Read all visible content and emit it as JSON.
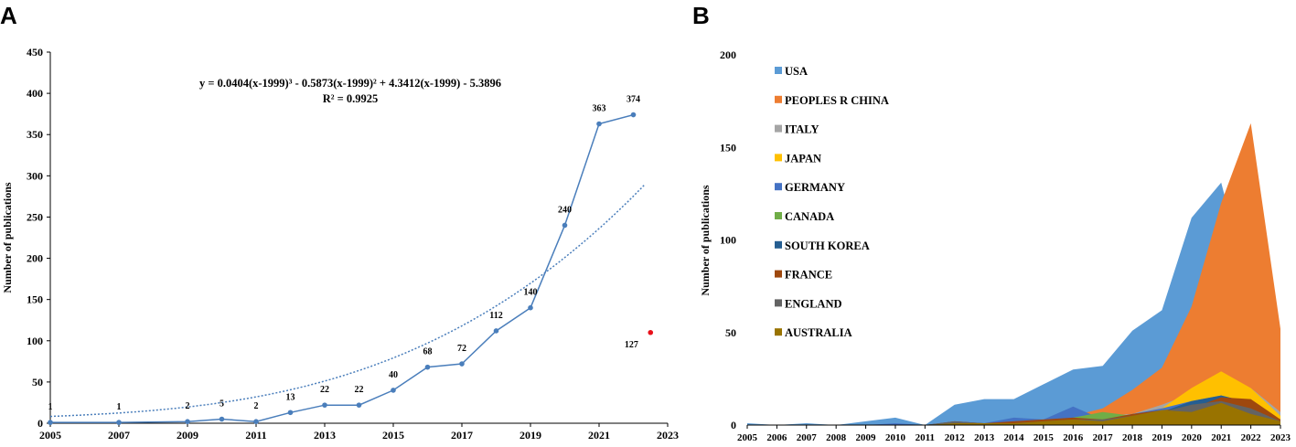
{
  "panels": {
    "a": "A",
    "b": "B"
  },
  "chart_data": [
    {
      "type": "line",
      "panel": "A",
      "ylabel": "Number of publications",
      "xlabel": "",
      "ylim": [
        0,
        450
      ],
      "xlim": [
        2005,
        2023
      ],
      "yticks": [
        0,
        50,
        100,
        150,
        200,
        250,
        300,
        350,
        400,
        450
      ],
      "xticks": [
        2005,
        2007,
        2009,
        2011,
        2013,
        2015,
        2017,
        2019,
        2021,
        2023
      ],
      "series": [
        {
          "name": "Publications",
          "color": "#4a7ebb",
          "x": [
            2005,
            2007,
            2009,
            2010,
            2011,
            2012,
            2013,
            2014,
            2015,
            2016,
            2017,
            2018,
            2019,
            2020,
            2021,
            2022
          ],
          "values": [
            1,
            1,
            2,
            5,
            2,
            13,
            22,
            22,
            40,
            68,
            72,
            112,
            140,
            240,
            363,
            374
          ]
        }
      ],
      "trendline": {
        "type": "polynomial",
        "equation": "y = 0.0404(x-1999)³ - 0.5873(x-1999)² + 4.3412(x-1999) - 5.3896",
        "r2": "R² = 0.9925",
        "coefficients": [
          0.0404,
          -0.5873,
          4.3412,
          -5.3896
        ],
        "x_offset": 1999
      },
      "extra_point": {
        "x": 2023,
        "value": 127,
        "label": "127",
        "color": "#e8101a"
      }
    },
    {
      "type": "area",
      "panel": "B",
      "ylabel": "Number of publications",
      "xlabel": "",
      "ylim": [
        0,
        200
      ],
      "yticks": [
        0,
        50,
        100,
        150,
        200
      ],
      "categories": [
        "2005",
        "2006",
        "2007",
        "2008",
        "2009",
        "2010",
        "2011",
        "2012",
        "2013",
        "2014",
        "2015",
        "2016",
        "2017",
        "2018",
        "2019",
        "2020",
        "2021",
        "2022",
        "2023"
      ],
      "legend_position": "top-left",
      "series": [
        {
          "name": "USA",
          "color": "#5b9bd5",
          "values": [
            1,
            0,
            1,
            0,
            2,
            4,
            0,
            11,
            14,
            14,
            22,
            30,
            32,
            51,
            62,
            112,
            131,
            70,
            12
          ]
        },
        {
          "name": "PEOPLES R CHINA",
          "color": "#ed7d31",
          "values": [
            0,
            0,
            0,
            0,
            0,
            0,
            0,
            1,
            1,
            2,
            3,
            5,
            9,
            19,
            31,
            64,
            120,
            163,
            52
          ]
        },
        {
          "name": "ITALY",
          "color": "#a5a5a5",
          "values": [
            0,
            0,
            0,
            0,
            0,
            0,
            0,
            1,
            1,
            1,
            2,
            3,
            5,
            6,
            11,
            17,
            21,
            20,
            7
          ]
        },
        {
          "name": "JAPAN",
          "color": "#ffc000",
          "values": [
            0,
            0,
            0,
            0,
            0,
            0,
            0,
            0,
            1,
            1,
            2,
            3,
            4,
            5,
            9,
            20,
            29,
            20,
            5
          ]
        },
        {
          "name": "GERMANY",
          "color": "#4472c4",
          "values": [
            0,
            0,
            0,
            0,
            0,
            1,
            0,
            1,
            1,
            4,
            3,
            10,
            3,
            6,
            9,
            13,
            16,
            12,
            3
          ]
        },
        {
          "name": "CANADA",
          "color": "#70ad47",
          "values": [
            0,
            0,
            0,
            0,
            0,
            0,
            0,
            1,
            1,
            1,
            2,
            4,
            7,
            5,
            8,
            10,
            14,
            10,
            3
          ]
        },
        {
          "name": "SOUTH KOREA",
          "color": "#255e91",
          "values": [
            0,
            0,
            0,
            0,
            0,
            0,
            0,
            1,
            1,
            1,
            2,
            3,
            2,
            4,
            7,
            13,
            16,
            12,
            2
          ]
        },
        {
          "name": "FRANCE",
          "color": "#9e480e",
          "values": [
            0,
            0,
            0,
            0,
            0,
            0,
            0,
            2,
            1,
            2,
            3,
            4,
            3,
            6,
            8,
            9,
            15,
            14,
            3
          ]
        },
        {
          "name": "ENGLAND",
          "color": "#636363",
          "values": [
            0,
            0,
            0,
            0,
            0,
            0,
            0,
            2,
            1,
            1,
            2,
            3,
            3,
            5,
            7,
            11,
            13,
            9,
            2
          ]
        },
        {
          "name": "AUSTRALIA",
          "color": "#997300",
          "values": [
            0,
            0,
            0,
            0,
            0,
            0,
            0,
            1,
            1,
            1,
            2,
            3,
            2,
            5,
            8,
            7,
            12,
            6,
            2
          ]
        }
      ]
    }
  ]
}
